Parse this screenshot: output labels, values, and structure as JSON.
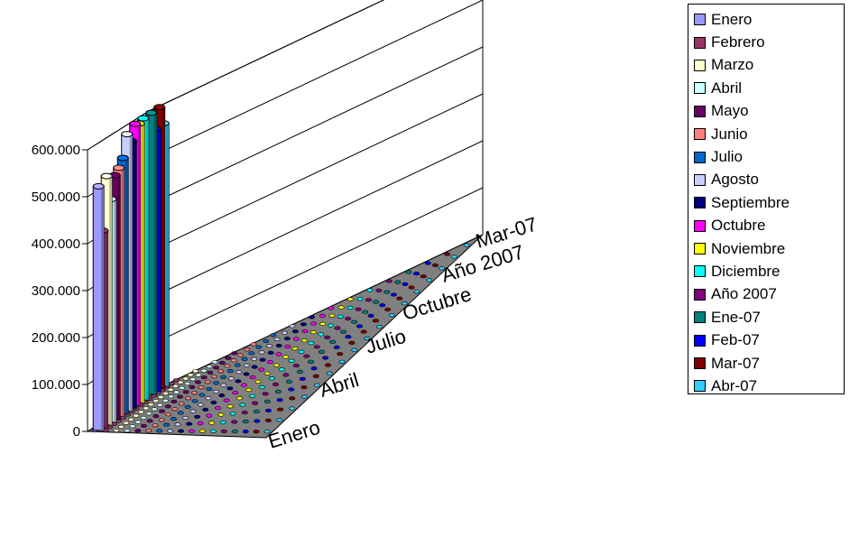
{
  "chart_data": {
    "type": "bar",
    "view": "3d-columns",
    "y_axis": {
      "ticks": [
        "0",
        "100.000",
        "200.000",
        "300.000",
        "400.000",
        "500.000",
        "600.000"
      ],
      "ylim": [
        0,
        600000
      ]
    },
    "depth_axis_labels": [
      "Enero",
      "Abril",
      "Julio",
      "Octubre",
      "Año 2007",
      "Mar-07"
    ],
    "grid": true,
    "legend_position": "right",
    "series": [
      {
        "name": "Enero",
        "color": "#9999FF",
        "value": 520000
      },
      {
        "name": "Febrero",
        "color": "#993366",
        "value": 420000
      },
      {
        "name": "Marzo",
        "color": "#FFFFCC",
        "value": 530000
      },
      {
        "name": "Abril",
        "color": "#CCFFFF",
        "value": 475000
      },
      {
        "name": "Mayo",
        "color": "#660066",
        "value": 520000
      },
      {
        "name": "Junio",
        "color": "#FF8080",
        "value": 530000
      },
      {
        "name": "Julio",
        "color": "#0066CC",
        "value": 545000
      },
      {
        "name": "Agosto",
        "color": "#CCCCFF",
        "value": 590000
      },
      {
        "name": "Septiembre",
        "color": "#000080",
        "value": 570000
      },
      {
        "name": "Octubre",
        "color": "#FF00FF",
        "value": 600000
      },
      {
        "name": "Noviembre",
        "color": "#FFFF00",
        "value": 595000
      },
      {
        "name": "Diciembre",
        "color": "#00FFFF",
        "value": 600000
      },
      {
        "name": "Año 2007",
        "color": "#800080",
        "value": 0
      },
      {
        "name": "Ene-07",
        "color": "#008080",
        "value": 600000
      },
      {
        "name": "Feb-07",
        "color": "#0000FF",
        "value": 560000
      },
      {
        "name": "Mar-07",
        "color": "#800000",
        "value": 600000
      },
      {
        "name": "Abr-07",
        "color": "#33CCFF",
        "value": 560000
      }
    ]
  }
}
